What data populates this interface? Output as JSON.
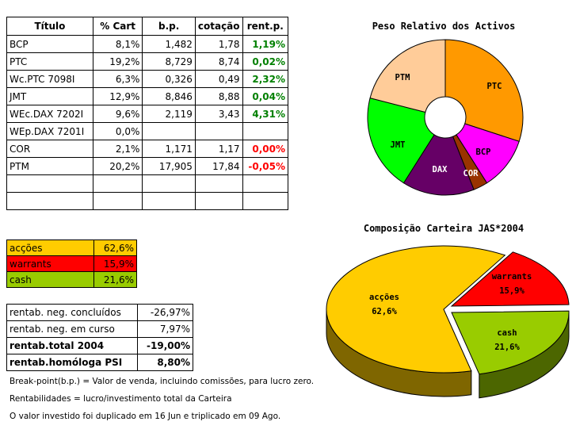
{
  "holdings_table": {
    "headers": [
      "Título",
      "% Cart",
      "b.p.",
      "cotação",
      "rent.p."
    ],
    "rows": [
      {
        "titulo": "BCP",
        "pct": "8,1%",
        "bp": "1,482",
        "cotacao": "1,78",
        "rent": "1,19%",
        "rent_class": "pos"
      },
      {
        "titulo": "PTC",
        "pct": "19,2%",
        "bp": "8,729",
        "cotacao": "8,74",
        "rent": "0,02%",
        "rent_class": "pos"
      },
      {
        "titulo": "Wc.PTC 7098I",
        "pct": "6,3%",
        "bp": "0,326",
        "cotacao": "0,49",
        "rent": "2,32%",
        "rent_class": "pos"
      },
      {
        "titulo": "JMT",
        "pct": "12,9%",
        "bp": "8,846",
        "cotacao": "8,88",
        "rent": "0,04%",
        "rent_class": "pos"
      },
      {
        "titulo": "WEc.DAX 7202I",
        "pct": "9,6%",
        "bp": "2,119",
        "cotacao": "3,43",
        "rent": "4,31%",
        "rent_class": "pos"
      },
      {
        "titulo": "WEp.DAX 7201I",
        "pct": "0,0%",
        "bp": "",
        "cotacao": "",
        "rent": "",
        "rent_class": "pos"
      },
      {
        "titulo": "COR",
        "pct": "2,1%",
        "bp": "1,171",
        "cotacao": "1,17",
        "rent": "0,00%",
        "rent_class": "neg"
      },
      {
        "titulo": "PTM",
        "pct": "20,2%",
        "bp": "17,905",
        "cotacao": "17,84",
        "rent": "-0,05%",
        "rent_class": "neg"
      },
      {
        "titulo": "",
        "pct": "",
        "bp": "",
        "cotacao": "",
        "rent": "",
        "rent_class": "pos"
      },
      {
        "titulo": "",
        "pct": "",
        "bp": "",
        "cotacao": "",
        "rent": "",
        "rent_class": "pos"
      }
    ]
  },
  "allocation_table": [
    {
      "label": "acções",
      "value": "62,6%",
      "bg": "#ffcc00",
      "fg": "#000000"
    },
    {
      "label": "warrants",
      "value": "15,9%",
      "bg": "#ff0000",
      "fg": "#000000"
    },
    {
      "label": "cash",
      "value": "21,6%",
      "bg": "#99cc00",
      "fg": "#000000"
    }
  ],
  "performance_table": [
    {
      "label": "rentab. neg. concluídos",
      "value": "-26,97%",
      "bold": false
    },
    {
      "label": "rentab. neg. em curso",
      "value": "7,97%",
      "bold": false
    },
    {
      "label": "rentab.total 2004",
      "value": "-19,00%",
      "bold": true
    },
    {
      "label": "rentab.homóloga PSI",
      "value": "8,80%",
      "bold": true
    }
  ],
  "notes": {
    "breakpoint": "Break-point(b.p.) = Valor de venda, incluindo comissões, para lucro zero.",
    "rentabilidades": "Rentabilidades = lucro/investimento total da Carteira",
    "investido": "O valor investido foi duplicado em 16 Jun e triplicado em 09 Ago."
  },
  "chart_data": [
    {
      "type": "pie",
      "title": "Peso Relativo dos Activos",
      "slices": [
        {
          "label": "PTC",
          "value": 30.0,
          "color": "#ff9900"
        },
        {
          "label": "BCP",
          "value": 11.0,
          "color": "#ff00ff"
        },
        {
          "label": "COR",
          "value": 3.0,
          "color": "#993300"
        },
        {
          "label": "DAX",
          "value": 15.0,
          "color": "#660066"
        },
        {
          "label": "JMT",
          "value": 20.0,
          "color": "#00ff00"
        },
        {
          "label": "PTM",
          "value": 21.0,
          "color": "#ffcc99"
        }
      ],
      "legend": "none"
    },
    {
      "type": "pie",
      "title": "Composição Carteira JAS*2004",
      "slices": [
        {
          "label": "acções",
          "value": 62.6,
          "display": "62,6%",
          "color": "#ffcc00"
        },
        {
          "label": "warrants",
          "value": 15.9,
          "display": "15,9%",
          "color": "#ff0000"
        },
        {
          "label": "cash",
          "value": 21.6,
          "display": "21,6%",
          "color": "#99cc00"
        }
      ],
      "style": "3d-exploded",
      "legend": "none"
    }
  ]
}
